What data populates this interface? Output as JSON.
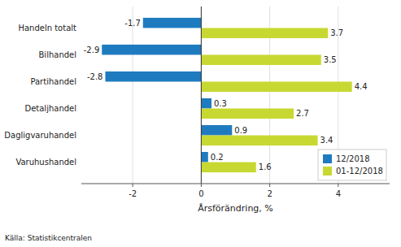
{
  "chart_data": {
    "type": "bar",
    "orientation": "horizontal",
    "categories": [
      "Handeln totalt",
      "Bilhandel",
      "Partihandel",
      "Detaljhandel",
      "Dagligvaruhandel",
      "Varuhushandel"
    ],
    "series": [
      {
        "name": "12/2018",
        "color": "#1f7bbf",
        "values": [
          -1.7,
          -2.9,
          -2.8,
          0.3,
          0.9,
          0.2
        ]
      },
      {
        "name": "01-12/2018",
        "color": "#c8d832",
        "values": [
          3.7,
          3.5,
          4.4,
          2.7,
          3.4,
          1.6
        ]
      }
    ],
    "xlabel": "Årsförändring, %",
    "source": "Källa: Statistikcentralen",
    "xlim": [
      -3.5,
      5.5
    ],
    "xticks": [
      -2,
      0,
      2,
      4
    ],
    "grid": true,
    "legend": "lower right",
    "data_labels": true
  }
}
